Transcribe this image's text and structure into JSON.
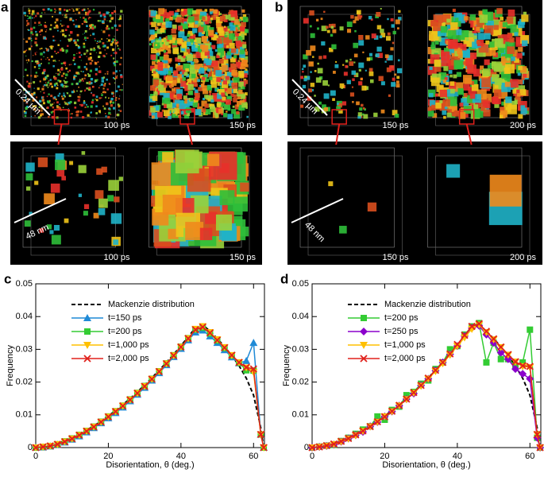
{
  "panels": [
    {
      "label": "a",
      "scale_top": "0.24 µm",
      "scale_bottom": "48 nm",
      "times_top": [
        "100 ps",
        "150 ps"
      ],
      "times_bottom": [
        "100 ps",
        "150 ps"
      ]
    },
    {
      "label": "b",
      "scale_top": "0.24 µm",
      "scale_bottom": "48 nm",
      "times_top": [
        "150 ps",
        "200 ps"
      ],
      "times_bottom": [
        "150 ps",
        "200 ps"
      ]
    }
  ],
  "chart_data": [
    {
      "type": "line",
      "panel_label": "c",
      "xlabel": "Disorientation, θ (deg.)",
      "ylabel": "Frequency",
      "xlim": [
        0,
        63
      ],
      "ylim": [
        0,
        0.05
      ],
      "xticks": [
        0,
        20,
        40,
        60
      ],
      "yticks": [
        0,
        0.01,
        0.02,
        0.03,
        0.04,
        0.05
      ],
      "legend": "upper left",
      "x": [
        0,
        2,
        4,
        6,
        8,
        10,
        12,
        14,
        16,
        18,
        20,
        22,
        24,
        26,
        28,
        30,
        32,
        34,
        36,
        38,
        40,
        42,
        44,
        46,
        48,
        50,
        52,
        54,
        56,
        58,
        60,
        62,
        62.8
      ],
      "series": [
        {
          "name": "Mackenzie distribution",
          "color": "#000000",
          "dashed": true,
          "marker": "none",
          "values": [
            0,
            0.0002,
            0.0006,
            0.0012,
            0.002,
            0.003,
            0.0041,
            0.0053,
            0.0066,
            0.0081,
            0.0097,
            0.0113,
            0.0131,
            0.015,
            0.017,
            0.0191,
            0.0213,
            0.0236,
            0.026,
            0.0285,
            0.0311,
            0.0338,
            0.0366,
            0.0375,
            0.0355,
            0.0333,
            0.0308,
            0.0281,
            0.025,
            0.0212,
            0.016,
            0.006,
            0
          ]
        },
        {
          "name": "t=150 ps",
          "color": "#1f8ad6",
          "marker": "triangle-up",
          "values": [
            0,
            0.0001,
            0.0004,
            0.0009,
            0.0016,
            0.0025,
            0.0035,
            0.0047,
            0.006,
            0.0075,
            0.009,
            0.0106,
            0.0123,
            0.0142,
            0.0162,
            0.0183,
            0.0205,
            0.0228,
            0.0252,
            0.0277,
            0.0302,
            0.0328,
            0.0352,
            0.0358,
            0.034,
            0.032,
            0.0298,
            0.0276,
            0.0258,
            0.0265,
            0.032,
            0.004,
            0
          ]
        },
        {
          "name": "t=200 ps",
          "color": "#33cc33",
          "marker": "square",
          "values": [
            0,
            0.0002,
            0.0005,
            0.001,
            0.0019,
            0.0028,
            0.0039,
            0.0051,
            0.0064,
            0.0079,
            0.0095,
            0.0111,
            0.0128,
            0.0147,
            0.0167,
            0.0188,
            0.021,
            0.0233,
            0.0257,
            0.0282,
            0.0308,
            0.0334,
            0.036,
            0.0366,
            0.0348,
            0.0327,
            0.0304,
            0.0281,
            0.0259,
            0.0236,
            0.0235,
            0.004,
            0
          ]
        },
        {
          "name": "t=1,000 ps",
          "color": "#ffc000",
          "marker": "triangle-down",
          "values": [
            0,
            0.0002,
            0.0005,
            0.001,
            0.0018,
            0.0027,
            0.0038,
            0.005,
            0.0063,
            0.0078,
            0.0094,
            0.011,
            0.0127,
            0.0146,
            0.0166,
            0.0187,
            0.0209,
            0.0232,
            0.0256,
            0.0281,
            0.0307,
            0.0333,
            0.0362,
            0.037,
            0.0352,
            0.033,
            0.0306,
            0.0282,
            0.026,
            0.0244,
            0.023,
            0.004,
            0
          ]
        },
        {
          "name": "t=2,000 ps",
          "color": "#e0201b",
          "marker": "x",
          "values": [
            0,
            0.0002,
            0.0005,
            0.001,
            0.0018,
            0.0027,
            0.0038,
            0.005,
            0.0063,
            0.0078,
            0.0094,
            0.011,
            0.0127,
            0.0146,
            0.0166,
            0.0187,
            0.0209,
            0.0232,
            0.0256,
            0.0281,
            0.0307,
            0.0333,
            0.036,
            0.0368,
            0.035,
            0.0328,
            0.0305,
            0.0282,
            0.026,
            0.0245,
            0.024,
            0.004,
            0
          ]
        }
      ]
    },
    {
      "type": "line",
      "panel_label": "d",
      "xlabel": "Disorientation, θ (deg.)",
      "ylabel": "Frequency",
      "xlim": [
        0,
        63
      ],
      "ylim": [
        0,
        0.05
      ],
      "xticks": [
        0,
        20,
        40,
        60
      ],
      "yticks": [
        0,
        0.01,
        0.02,
        0.03,
        0.04,
        0.05
      ],
      "legend": "upper left",
      "x": [
        0,
        2,
        4,
        6,
        8,
        10,
        12,
        14,
        16,
        18,
        20,
        22,
        24,
        26,
        28,
        30,
        32,
        34,
        36,
        38,
        40,
        42,
        44,
        46,
        48,
        50,
        52,
        54,
        56,
        58,
        60,
        62,
        62.8
      ],
      "series": [
        {
          "name": "Mackenzie distribution",
          "color": "#000000",
          "dashed": true,
          "marker": "none",
          "values": [
            0,
            0.0002,
            0.0006,
            0.0012,
            0.002,
            0.003,
            0.0041,
            0.0053,
            0.0066,
            0.0081,
            0.0097,
            0.0113,
            0.0131,
            0.015,
            0.017,
            0.0191,
            0.0213,
            0.0236,
            0.026,
            0.0285,
            0.0311,
            0.0338,
            0.0366,
            0.0375,
            0.0355,
            0.0333,
            0.0308,
            0.0281,
            0.025,
            0.0212,
            0.016,
            0.006,
            0
          ]
        },
        {
          "name": "t=200 ps",
          "color": "#33cc33",
          "marker": "square",
          "values": [
            0,
            0.0003,
            0.0006,
            0.0008,
            0.002,
            0.003,
            0.0042,
            0.0055,
            0.0065,
            0.0095,
            0.0085,
            0.0115,
            0.0125,
            0.016,
            0.017,
            0.0195,
            0.0205,
            0.024,
            0.026,
            0.03,
            0.031,
            0.0345,
            0.037,
            0.038,
            0.026,
            0.032,
            0.027,
            0.027,
            0.025,
            0.026,
            0.036,
            0.003,
            0
          ]
        },
        {
          "name": "t=250 ps",
          "color": "#8b00cc",
          "marker": "diamond",
          "values": [
            0,
            0.0002,
            0.0005,
            0.0009,
            0.0018,
            0.0028,
            0.0038,
            0.0048,
            0.0065,
            0.0078,
            0.0095,
            0.011,
            0.0128,
            0.0148,
            0.0165,
            0.019,
            0.021,
            0.0235,
            0.026,
            0.0285,
            0.031,
            0.034,
            0.0365,
            0.0372,
            0.0345,
            0.032,
            0.029,
            0.027,
            0.024,
            0.0225,
            0.021,
            0.003,
            0
          ]
        },
        {
          "name": "t=1,000 ps",
          "color": "#ffc000",
          "marker": "triangle-down",
          "values": [
            0,
            0.0002,
            0.0005,
            0.001,
            0.0018,
            0.0027,
            0.0037,
            0.005,
            0.0064,
            0.0078,
            0.0095,
            0.011,
            0.0128,
            0.0147,
            0.0167,
            0.0188,
            0.021,
            0.0233,
            0.0257,
            0.0283,
            0.031,
            0.0336,
            0.0362,
            0.0375,
            0.0352,
            0.033,
            0.0306,
            0.0283,
            0.0262,
            0.0248,
            0.0245,
            0.004,
            0
          ]
        },
        {
          "name": "t=2,000 ps",
          "color": "#e0201b",
          "marker": "x",
          "values": [
            0,
            0.0002,
            0.0006,
            0.0011,
            0.0019,
            0.0028,
            0.0039,
            0.0051,
            0.0064,
            0.0079,
            0.0094,
            0.0111,
            0.0129,
            0.0148,
            0.0168,
            0.019,
            0.0212,
            0.0236,
            0.026,
            0.0286,
            0.0315,
            0.0343,
            0.037,
            0.0378,
            0.0355,
            0.0332,
            0.0307,
            0.0284,
            0.0262,
            0.025,
            0.0248,
            0.004,
            0
          ]
        }
      ]
    }
  ]
}
